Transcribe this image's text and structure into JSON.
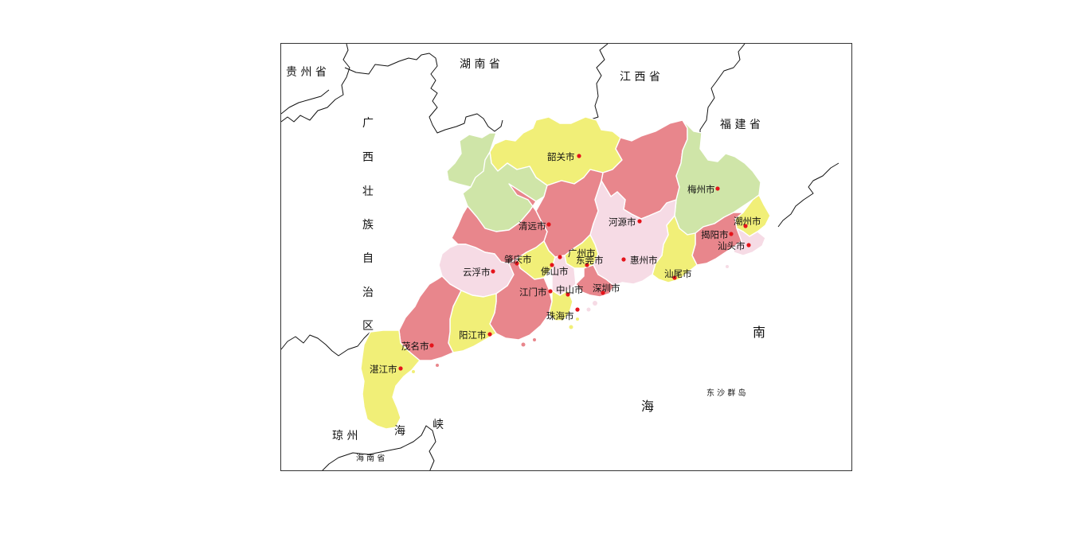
{
  "colors": {
    "pink_red": "#e8868c",
    "yellow": "#f1ef78",
    "light_green": "#cfe5a8",
    "light_pink": "#f6dbe5",
    "city_dot": "#e4141b",
    "border": "#111111"
  },
  "neighbors": {
    "guizhou": "贵 州 省",
    "hunan": "湖 南 省",
    "jiangxi": "江 西 省",
    "fujian": "福 建 省",
    "guangxi": [
      "广",
      "西",
      "壮",
      "族",
      "自",
      "治",
      "区"
    ],
    "qiongzhou": "琼 州",
    "hai": "海",
    "xia": "峡",
    "hainan": "海 南 省",
    "nan": "南",
    "sea": "海",
    "dongsha": "东 沙 群 岛"
  },
  "cities": [
    {
      "id": "shaoguan",
      "name": "韶关市",
      "color": "yellow"
    },
    {
      "id": "qingyuan",
      "name": "清远市",
      "color": "light_green"
    },
    {
      "id": "heyuan",
      "name": "河源市",
      "color": "pink_red"
    },
    {
      "id": "meizhou",
      "name": "梅州市",
      "color": "light_green"
    },
    {
      "id": "chaozhou",
      "name": "潮州市",
      "color": "yellow"
    },
    {
      "id": "jieyang",
      "name": "揭阳市",
      "color": "pink_red"
    },
    {
      "id": "shantou",
      "name": "汕头市",
      "color": "light_pink"
    },
    {
      "id": "shanwei",
      "name": "汕尾市",
      "color": "yellow"
    },
    {
      "id": "huizhou",
      "name": "惠州市",
      "color": "light_pink"
    },
    {
      "id": "guangzhou",
      "name": "广州市",
      "color": "pink_red"
    },
    {
      "id": "dongguan",
      "name": "东莞市",
      "color": "yellow"
    },
    {
      "id": "shenzhen",
      "name": "深圳市",
      "color": "pink_red"
    },
    {
      "id": "zhaoqing",
      "name": "肇庆市",
      "color": "pink_red"
    },
    {
      "id": "foshan",
      "name": "佛山市",
      "color": "yellow"
    },
    {
      "id": "yunfu",
      "name": "云浮市",
      "color": "light_pink"
    },
    {
      "id": "jiangmen",
      "name": "江门市",
      "color": "pink_red"
    },
    {
      "id": "zhongshan",
      "name": "中山市",
      "color": "light_pink"
    },
    {
      "id": "zhuhai",
      "name": "珠海市",
      "color": "yellow"
    },
    {
      "id": "yangjiang",
      "name": "阳江市",
      "color": "yellow"
    },
    {
      "id": "maoming",
      "name": "茂名市",
      "color": "pink_red"
    },
    {
      "id": "zhanjiang",
      "name": "湛江市",
      "color": "yellow"
    }
  ]
}
